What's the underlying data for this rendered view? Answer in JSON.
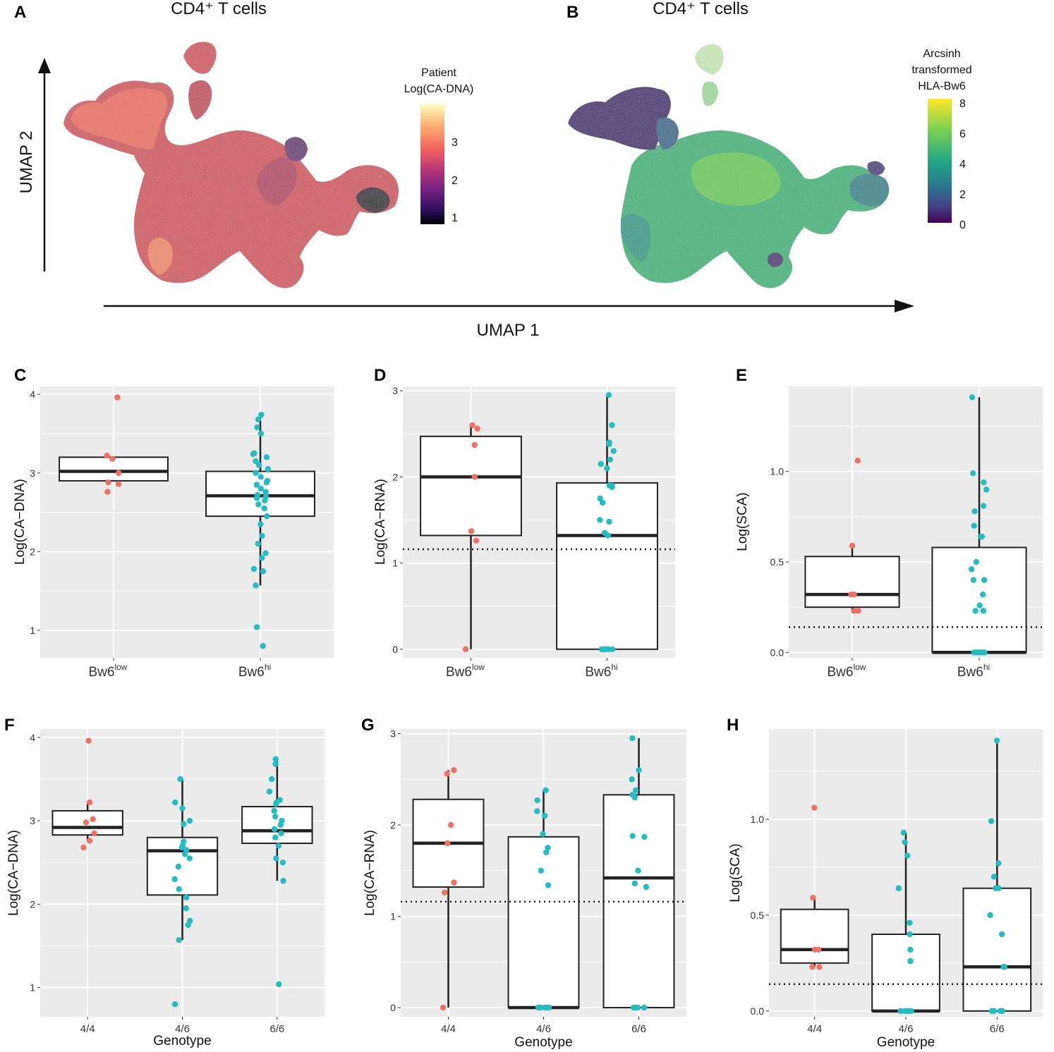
{
  "panels": {
    "A": {
      "letter": "A",
      "title": "CD4⁺ T cells"
    },
    "B": {
      "letter": "B",
      "title": "CD4⁺ T cells"
    }
  },
  "umap": {
    "xlabel": "UMAP 1",
    "ylabel": "UMAP 2",
    "legend_a": {
      "title_lines": [
        "Patient",
        "Log(CA-DNA)"
      ],
      "ticks": [
        "3",
        "2",
        "1"
      ],
      "colors": [
        "#fcfdbf",
        "#fcae70",
        "#f1605d",
        "#b63679",
        "#721f81",
        "#2d1160",
        "#000004"
      ]
    },
    "legend_b": {
      "title_lines": [
        "Arcsinh",
        "transformed",
        "HLA-Bw6"
      ],
      "ticks": [
        "8",
        "6",
        "4",
        "2",
        "0"
      ],
      "colors": [
        "#fde725",
        "#7ad151",
        "#22a884",
        "#2a788e",
        "#414487",
        "#440154"
      ]
    }
  },
  "colors": {
    "group_red": "#ef6f61",
    "group_teal": "#22bcc2",
    "panel_bg": "#ebebeb"
  },
  "chart_data": [
    {
      "id": "C",
      "letter": "C",
      "type": "box",
      "ylabel": "Log(CA−DNA)",
      "xlabel": "",
      "ylim": [
        0.65,
        4.1
      ],
      "yticks": [
        "1",
        "2",
        "3",
        "4"
      ],
      "ytick_values": [
        1,
        2,
        3,
        4
      ],
      "reference_line": null,
      "categories": [
        {
          "base": "Bw6",
          "sup": "low",
          "label": ""
        },
        {
          "base": "Bw6",
          "sup": "hi",
          "label": ""
        }
      ],
      "boxes": [
        {
          "q1": 2.9,
          "median": 3.02,
          "q3": 3.2,
          "whisker_low": 2.9,
          "whisker_high": 3.2,
          "color": "#ef6f61",
          "points": [
            3.96,
            3.22,
            3.18,
            3.0,
            2.88,
            2.86,
            2.76
          ]
        },
        {
          "q1": 2.45,
          "median": 2.71,
          "q3": 3.02,
          "whisker_low": 1.57,
          "whisker_high": 3.74,
          "color": "#22bcc2",
          "points": [
            3.74,
            3.68,
            3.58,
            3.5,
            3.25,
            3.24,
            3.2,
            3.15,
            3.1,
            3.05,
            3.0,
            2.95,
            2.9,
            2.88,
            2.85,
            2.8,
            2.76,
            2.72,
            2.7,
            2.68,
            2.65,
            2.6,
            2.55,
            2.45,
            2.35,
            2.2,
            2.1,
            1.98,
            1.92,
            1.78,
            1.75,
            1.57,
            1.04,
            0.8
          ]
        }
      ]
    },
    {
      "id": "D",
      "letter": "D",
      "type": "box",
      "ylabel": "Log(CA−RNA)",
      "xlabel": "",
      "ylim": [
        -0.1,
        3.05
      ],
      "yticks": [
        "0",
        "1",
        "2",
        "3"
      ],
      "ytick_values": [
        0,
        1,
        2,
        3
      ],
      "reference_line": 1.16,
      "categories": [
        {
          "base": "Bw6",
          "sup": "low",
          "label": ""
        },
        {
          "base": "Bw6",
          "sup": "hi",
          "label": ""
        }
      ],
      "boxes": [
        {
          "q1": 1.32,
          "median": 2.0,
          "q3": 2.47,
          "whisker_low": 0.0,
          "whisker_high": 2.6,
          "color": "#ef6f61",
          "points": [
            2.6,
            2.56,
            2.37,
            2.0,
            1.37,
            1.26,
            0.0
          ]
        },
        {
          "q1": 0.0,
          "median": 1.32,
          "q3": 1.93,
          "whisker_low": 0.0,
          "whisker_high": 2.95,
          "color": "#22bcc2",
          "points": [
            2.95,
            2.6,
            2.4,
            2.38,
            2.3,
            2.2,
            2.15,
            2.1,
            1.9,
            1.9,
            1.88,
            1.75,
            1.7,
            1.5,
            1.48,
            1.35,
            1.32,
            0.0,
            0.0,
            0.0,
            0.0,
            0.0
          ]
        }
      ]
    },
    {
      "id": "E",
      "letter": "E",
      "type": "box",
      "ylabel": "Log(SCA)",
      "xlabel": "",
      "ylim": [
        -0.03,
        1.47
      ],
      "yticks": [
        "0.0",
        "0.5",
        "1.0"
      ],
      "ytick_values": [
        0,
        0.5,
        1.0
      ],
      "reference_line": 0.14,
      "categories": [
        {
          "base": "Bw6",
          "sup": "low",
          "label": ""
        },
        {
          "base": "Bw6",
          "sup": "hi",
          "label": ""
        }
      ],
      "boxes": [
        {
          "q1": 0.25,
          "median": 0.32,
          "q3": 0.53,
          "whisker_low": 0.23,
          "whisker_high": 0.6,
          "color": "#ef6f61",
          "points": [
            1.06,
            0.59,
            0.32,
            0.32,
            0.23,
            0.23
          ]
        },
        {
          "q1": 0.0,
          "median": 0.0,
          "q3": 0.58,
          "whisker_low": 0.0,
          "whisker_high": 1.41,
          "color": "#22bcc2",
          "points": [
            1.41,
            0.99,
            0.94,
            0.9,
            0.81,
            0.78,
            0.7,
            0.64,
            0.64,
            0.5,
            0.46,
            0.4,
            0.4,
            0.32,
            0.26,
            0.23,
            0.23,
            0.0,
            0.0,
            0.0,
            0.0,
            0.0,
            0.0
          ]
        }
      ]
    },
    {
      "id": "F",
      "letter": "F",
      "type": "box",
      "ylabel": "Log(CA−DNA)",
      "xlabel": "Genotype",
      "ylim": [
        0.65,
        4.1
      ],
      "yticks": [
        "1",
        "2",
        "3",
        "4"
      ],
      "ytick_values": [
        1,
        2,
        3,
        4
      ],
      "reference_line": null,
      "categories": [
        {
          "base": "",
          "sup": "",
          "label": "4/4"
        },
        {
          "base": "",
          "sup": "",
          "label": "4/6"
        },
        {
          "base": "",
          "sup": "",
          "label": "6/6"
        }
      ],
      "boxes": [
        {
          "q1": 2.83,
          "median": 2.92,
          "q3": 3.12,
          "whisker_low": 2.75,
          "whisker_high": 3.2,
          "color": "#ef6f61",
          "points": [
            3.96,
            3.22,
            3.02,
            2.98,
            2.85,
            2.76,
            2.68
          ]
        },
        {
          "q1": 2.11,
          "median": 2.64,
          "q3": 2.8,
          "whisker_low": 1.57,
          "whisker_high": 3.5,
          "color": "#22bcc2",
          "points": [
            3.5,
            3.22,
            3.15,
            3.0,
            2.96,
            2.75,
            2.7,
            2.68,
            2.65,
            2.6,
            2.55,
            2.45,
            2.3,
            2.18,
            2.08,
            1.95,
            1.8,
            1.75,
            1.57,
            0.8
          ]
        },
        {
          "q1": 2.73,
          "median": 2.88,
          "q3": 3.17,
          "whisker_low": 2.28,
          "whisker_high": 3.74,
          "color": "#22bcc2",
          "points": [
            3.74,
            3.68,
            3.5,
            3.35,
            3.25,
            3.22,
            3.2,
            3.12,
            3.05,
            3.0,
            2.95,
            2.9,
            2.85,
            2.8,
            2.7,
            2.55,
            2.5,
            2.28,
            1.04
          ]
        }
      ]
    },
    {
      "id": "G",
      "letter": "G",
      "type": "box",
      "ylabel": "Log(CA−RNA)",
      "xlabel": "Genotype",
      "ylim": [
        -0.1,
        3.05
      ],
      "yticks": [
        "0",
        "1",
        "2",
        "3"
      ],
      "ytick_values": [
        0,
        1,
        2,
        3
      ],
      "reference_line": 1.16,
      "categories": [
        {
          "base": "",
          "sup": "",
          "label": "4/4"
        },
        {
          "base": "",
          "sup": "",
          "label": "4/6"
        },
        {
          "base": "",
          "sup": "",
          "label": "6/6"
        }
      ],
      "boxes": [
        {
          "q1": 1.32,
          "median": 1.8,
          "q3": 2.28,
          "whisker_low": 0.0,
          "whisker_high": 2.6,
          "color": "#ef6f61",
          "points": [
            2.6,
            2.56,
            2.0,
            1.8,
            1.37,
            1.26,
            0.0
          ]
        },
        {
          "q1": 0.0,
          "median": 0.0,
          "q3": 1.87,
          "whisker_low": 0.0,
          "whisker_high": 2.38,
          "color": "#22bcc2",
          "points": [
            2.38,
            2.27,
            2.15,
            2.1,
            1.9,
            1.75,
            1.7,
            1.5,
            1.34,
            0.0,
            0.0,
            0.0,
            0.0,
            0.0
          ]
        },
        {
          "q1": 0.0,
          "median": 1.42,
          "q3": 2.33,
          "whisker_low": 0.0,
          "whisker_high": 2.95,
          "color": "#22bcc2",
          "points": [
            2.95,
            2.6,
            2.5,
            2.38,
            2.33,
            2.3,
            1.88,
            1.87,
            1.5,
            1.36,
            1.32,
            0.0,
            0.0,
            0.0,
            0.0
          ]
        }
      ]
    },
    {
      "id": "H",
      "letter": "H",
      "type": "box",
      "ylabel": "Log(SCA)",
      "xlabel": "Genotype",
      "ylim": [
        -0.03,
        1.47
      ],
      "yticks": [
        "0.0",
        "0.5",
        "1.0"
      ],
      "ytick_values": [
        0,
        0.5,
        1.0
      ],
      "reference_line": 0.14,
      "categories": [
        {
          "base": "",
          "sup": "",
          "label": "4/4"
        },
        {
          "base": "",
          "sup": "",
          "label": "4/6"
        },
        {
          "base": "",
          "sup": "",
          "label": "6/6"
        }
      ],
      "boxes": [
        {
          "q1": 0.25,
          "median": 0.32,
          "q3": 0.53,
          "whisker_low": 0.23,
          "whisker_high": 0.6,
          "color": "#ef6f61",
          "points": [
            1.06,
            0.59,
            0.32,
            0.32,
            0.23,
            0.23
          ]
        },
        {
          "q1": 0.0,
          "median": 0.0,
          "q3": 0.4,
          "whisker_low": 0.0,
          "whisker_high": 0.93,
          "color": "#22bcc2",
          "points": [
            0.93,
            0.88,
            0.81,
            0.64,
            0.46,
            0.4,
            0.32,
            0.26,
            0.0,
            0.0,
            0.0,
            0.0,
            0.0
          ]
        },
        {
          "q1": 0.0,
          "median": 0.23,
          "q3": 0.64,
          "whisker_low": 0.0,
          "whisker_high": 1.41,
          "color": "#22bcc2",
          "points": [
            1.41,
            0.99,
            0.77,
            0.7,
            0.64,
            0.64,
            0.5,
            0.4,
            0.23,
            0.23,
            0.0,
            0.0,
            0.0,
            0.0
          ]
        }
      ]
    }
  ]
}
